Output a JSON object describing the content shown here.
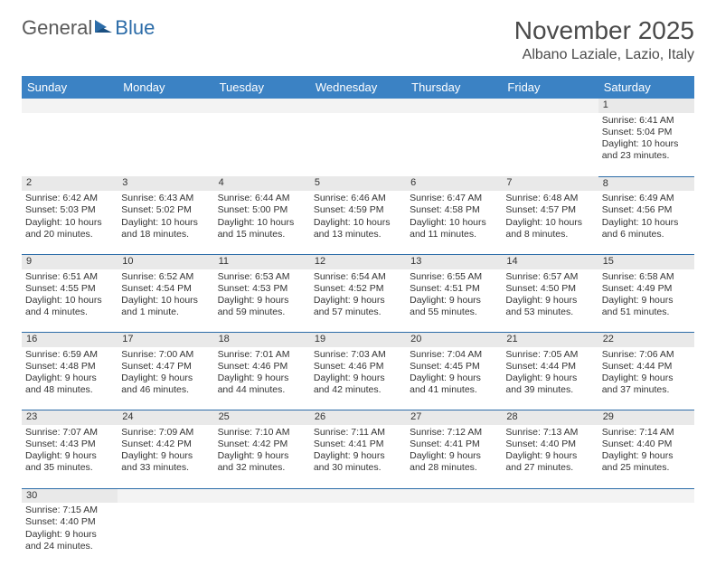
{
  "logo": {
    "part1": "General",
    "part2": "Blue"
  },
  "title": "November 2025",
  "location": "Albano Laziale, Lazio, Italy",
  "colors": {
    "header_bg": "#3b82c4",
    "header_text": "#ffffff",
    "daynum_bg": "#e9e9e9",
    "rule": "#2c6ca8",
    "logo_icon": "#2c6ca8",
    "text": "#333333"
  },
  "typography": {
    "month_fontsize": 28,
    "location_fontsize": 16,
    "header_fontsize": 13,
    "cell_fontsize": 10.5
  },
  "day_headers": [
    "Sunday",
    "Monday",
    "Tuesday",
    "Wednesday",
    "Thursday",
    "Friday",
    "Saturday"
  ],
  "weeks": [
    [
      null,
      null,
      null,
      null,
      null,
      null,
      {
        "n": "1",
        "sunrise": "Sunrise: 6:41 AM",
        "sunset": "Sunset: 5:04 PM",
        "daylight": "Daylight: 10 hours and 23 minutes."
      }
    ],
    [
      {
        "n": "2",
        "sunrise": "Sunrise: 6:42 AM",
        "sunset": "Sunset: 5:03 PM",
        "daylight": "Daylight: 10 hours and 20 minutes."
      },
      {
        "n": "3",
        "sunrise": "Sunrise: 6:43 AM",
        "sunset": "Sunset: 5:02 PM",
        "daylight": "Daylight: 10 hours and 18 minutes."
      },
      {
        "n": "4",
        "sunrise": "Sunrise: 6:44 AM",
        "sunset": "Sunset: 5:00 PM",
        "daylight": "Daylight: 10 hours and 15 minutes."
      },
      {
        "n": "5",
        "sunrise": "Sunrise: 6:46 AM",
        "sunset": "Sunset: 4:59 PM",
        "daylight": "Daylight: 10 hours and 13 minutes."
      },
      {
        "n": "6",
        "sunrise": "Sunrise: 6:47 AM",
        "sunset": "Sunset: 4:58 PM",
        "daylight": "Daylight: 10 hours and 11 minutes."
      },
      {
        "n": "7",
        "sunrise": "Sunrise: 6:48 AM",
        "sunset": "Sunset: 4:57 PM",
        "daylight": "Daylight: 10 hours and 8 minutes."
      },
      {
        "n": "8",
        "sunrise": "Sunrise: 6:49 AM",
        "sunset": "Sunset: 4:56 PM",
        "daylight": "Daylight: 10 hours and 6 minutes."
      }
    ],
    [
      {
        "n": "9",
        "sunrise": "Sunrise: 6:51 AM",
        "sunset": "Sunset: 4:55 PM",
        "daylight": "Daylight: 10 hours and 4 minutes."
      },
      {
        "n": "10",
        "sunrise": "Sunrise: 6:52 AM",
        "sunset": "Sunset: 4:54 PM",
        "daylight": "Daylight: 10 hours and 1 minute."
      },
      {
        "n": "11",
        "sunrise": "Sunrise: 6:53 AM",
        "sunset": "Sunset: 4:53 PM",
        "daylight": "Daylight: 9 hours and 59 minutes."
      },
      {
        "n": "12",
        "sunrise": "Sunrise: 6:54 AM",
        "sunset": "Sunset: 4:52 PM",
        "daylight": "Daylight: 9 hours and 57 minutes."
      },
      {
        "n": "13",
        "sunrise": "Sunrise: 6:55 AM",
        "sunset": "Sunset: 4:51 PM",
        "daylight": "Daylight: 9 hours and 55 minutes."
      },
      {
        "n": "14",
        "sunrise": "Sunrise: 6:57 AM",
        "sunset": "Sunset: 4:50 PM",
        "daylight": "Daylight: 9 hours and 53 minutes."
      },
      {
        "n": "15",
        "sunrise": "Sunrise: 6:58 AM",
        "sunset": "Sunset: 4:49 PM",
        "daylight": "Daylight: 9 hours and 51 minutes."
      }
    ],
    [
      {
        "n": "16",
        "sunrise": "Sunrise: 6:59 AM",
        "sunset": "Sunset: 4:48 PM",
        "daylight": "Daylight: 9 hours and 48 minutes."
      },
      {
        "n": "17",
        "sunrise": "Sunrise: 7:00 AM",
        "sunset": "Sunset: 4:47 PM",
        "daylight": "Daylight: 9 hours and 46 minutes."
      },
      {
        "n": "18",
        "sunrise": "Sunrise: 7:01 AM",
        "sunset": "Sunset: 4:46 PM",
        "daylight": "Daylight: 9 hours and 44 minutes."
      },
      {
        "n": "19",
        "sunrise": "Sunrise: 7:03 AM",
        "sunset": "Sunset: 4:46 PM",
        "daylight": "Daylight: 9 hours and 42 minutes."
      },
      {
        "n": "20",
        "sunrise": "Sunrise: 7:04 AM",
        "sunset": "Sunset: 4:45 PM",
        "daylight": "Daylight: 9 hours and 41 minutes."
      },
      {
        "n": "21",
        "sunrise": "Sunrise: 7:05 AM",
        "sunset": "Sunset: 4:44 PM",
        "daylight": "Daylight: 9 hours and 39 minutes."
      },
      {
        "n": "22",
        "sunrise": "Sunrise: 7:06 AM",
        "sunset": "Sunset: 4:44 PM",
        "daylight": "Daylight: 9 hours and 37 minutes."
      }
    ],
    [
      {
        "n": "23",
        "sunrise": "Sunrise: 7:07 AM",
        "sunset": "Sunset: 4:43 PM",
        "daylight": "Daylight: 9 hours and 35 minutes."
      },
      {
        "n": "24",
        "sunrise": "Sunrise: 7:09 AM",
        "sunset": "Sunset: 4:42 PM",
        "daylight": "Daylight: 9 hours and 33 minutes."
      },
      {
        "n": "25",
        "sunrise": "Sunrise: 7:10 AM",
        "sunset": "Sunset: 4:42 PM",
        "daylight": "Daylight: 9 hours and 32 minutes."
      },
      {
        "n": "26",
        "sunrise": "Sunrise: 7:11 AM",
        "sunset": "Sunset: 4:41 PM",
        "daylight": "Daylight: 9 hours and 30 minutes."
      },
      {
        "n": "27",
        "sunrise": "Sunrise: 7:12 AM",
        "sunset": "Sunset: 4:41 PM",
        "daylight": "Daylight: 9 hours and 28 minutes."
      },
      {
        "n": "28",
        "sunrise": "Sunrise: 7:13 AM",
        "sunset": "Sunset: 4:40 PM",
        "daylight": "Daylight: 9 hours and 27 minutes."
      },
      {
        "n": "29",
        "sunrise": "Sunrise: 7:14 AM",
        "sunset": "Sunset: 4:40 PM",
        "daylight": "Daylight: 9 hours and 25 minutes."
      }
    ],
    [
      {
        "n": "30",
        "sunrise": "Sunrise: 7:15 AM",
        "sunset": "Sunset: 4:40 PM",
        "daylight": "Daylight: 9 hours and 24 minutes."
      },
      null,
      null,
      null,
      null,
      null,
      null
    ]
  ]
}
